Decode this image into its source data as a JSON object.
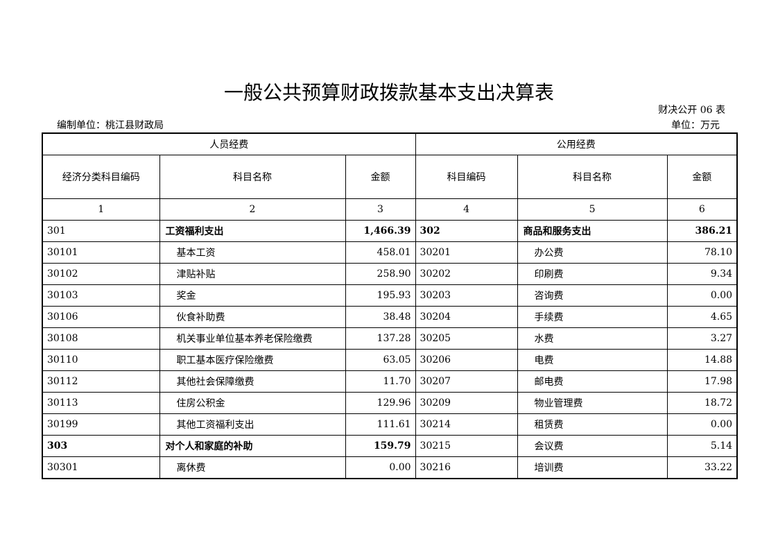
{
  "title": "一般公共预算财政拨款基本支出决算表",
  "form_no": "财决公开 06 表",
  "org": "编制单位：桃江县财政局",
  "unit": "单位：万元",
  "groups": [
    "人员经费",
    "公用经费"
  ],
  "headers": [
    "经济分类科目编码",
    "科目名称",
    "金额",
    "科目编码",
    "科目名称",
    "金额"
  ],
  "col_numbers": [
    "1",
    "2",
    "3",
    "4",
    "5",
    "6"
  ],
  "rows": [
    {
      "lc": "301",
      "ln": "工资福利支出",
      "la": "1,466.39",
      "lb": true,
      "lcb": false,
      "rc": "302",
      "rn": "商品和服务支出",
      "ra": "386.21",
      "rb": true
    },
    {
      "lc": "30101",
      "ln": "基本工资",
      "la": "458.01",
      "rc": "30201",
      "rn": "办公费",
      "ra": "78.10"
    },
    {
      "lc": "30102",
      "ln": "津贴补贴",
      "la": "258.90",
      "rc": "30202",
      "rn": "印刷费",
      "ra": "9.34"
    },
    {
      "lc": "30103",
      "ln": "奖金",
      "la": "195.93",
      "rc": "30203",
      "rn": "咨询费",
      "ra": "0.00"
    },
    {
      "lc": "30106",
      "ln": "伙食补助费",
      "la": "38.48",
      "rc": "30204",
      "rn": "手续费",
      "ra": "4.65"
    },
    {
      "lc": "30108",
      "ln": "机关事业单位基本养老保险缴费",
      "la": "137.28",
      "rc": "30205",
      "rn": "水费",
      "ra": "3.27"
    },
    {
      "lc": "30110",
      "ln": "职工基本医疗保险缴费",
      "la": "63.05",
      "rc": "30206",
      "rn": "电费",
      "ra": "14.88"
    },
    {
      "lc": "30112",
      "ln": "其他社会保障缴费",
      "la": "11.70",
      "rc": "30207",
      "rn": "邮电费",
      "ra": "17.98"
    },
    {
      "lc": "30113",
      "ln": "住房公积金",
      "la": "129.96",
      "rc": "30209",
      "rn": "物业管理费",
      "ra": "18.72"
    },
    {
      "lc": "30199",
      "ln": "其他工资福利支出",
      "la": "111.61",
      "rc": "30214",
      "rn": "租赁费",
      "ra": "0.00"
    },
    {
      "lc": "303",
      "ln": "对个人和家庭的补助",
      "la": "159.79",
      "lb": true,
      "lcb": true,
      "rc": "30215",
      "rn": "会议费",
      "ra": "5.14"
    },
    {
      "lc": "30301",
      "ln": "离休费",
      "la": "0.00",
      "rc": "30216",
      "rn": "培训费",
      "ra": "33.22"
    }
  ]
}
